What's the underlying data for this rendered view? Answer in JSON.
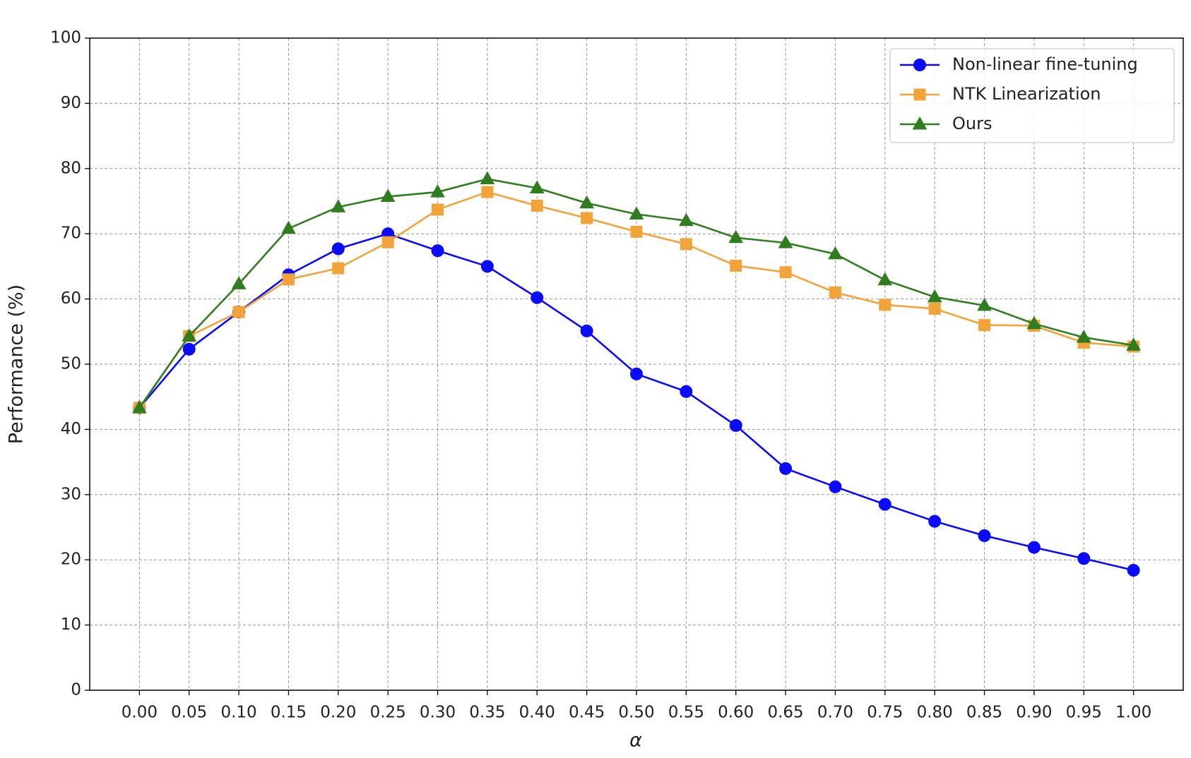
{
  "chart_data": {
    "type": "line",
    "xlabel": "α",
    "ylabel": "Performance (%)",
    "x": [
      0,
      0.05,
      0.1,
      0.15,
      0.2,
      0.25,
      0.3,
      0.35,
      0.4,
      0.45,
      0.5,
      0.55,
      0.6,
      0.65,
      0.7,
      0.75,
      0.8,
      0.85,
      0.9,
      0.95,
      1.0
    ],
    "xlim": [
      -0.05,
      1.05
    ],
    "xticks": [
      {
        "value": 0,
        "label": "0.00"
      },
      {
        "value": 0.05,
        "label": "0.05"
      },
      {
        "value": 0.1,
        "label": "0.10"
      },
      {
        "value": 0.15,
        "label": "0.15"
      },
      {
        "value": 0.2,
        "label": "0.20"
      },
      {
        "value": 0.25,
        "label": "0.25"
      },
      {
        "value": 0.3,
        "label": "0.30"
      },
      {
        "value": 0.35,
        "label": "0.35"
      },
      {
        "value": 0.4,
        "label": "0.40"
      },
      {
        "value": 0.45,
        "label": "0.45"
      },
      {
        "value": 0.5,
        "label": "0.50"
      },
      {
        "value": 0.55,
        "label": "0.55"
      },
      {
        "value": 0.6,
        "label": "0.60"
      },
      {
        "value": 0.65,
        "label": "0.65"
      },
      {
        "value": 0.7,
        "label": "0.70"
      },
      {
        "value": 0.75,
        "label": "0.75"
      },
      {
        "value": 0.8,
        "label": "0.80"
      },
      {
        "value": 0.85,
        "label": "0.85"
      },
      {
        "value": 0.9,
        "label": "0.90"
      },
      {
        "value": 0.95,
        "label": "0.95"
      },
      {
        "value": 1.0,
        "label": "1.00"
      }
    ],
    "ylim": [
      0,
      100
    ],
    "yticks": [
      0,
      10,
      20,
      30,
      40,
      50,
      60,
      70,
      80,
      90,
      100
    ],
    "grid": true,
    "legend": "upper right",
    "series": [
      {
        "name": "Non-linear fine-tuning",
        "color": "#0a0aff",
        "marker": "circle",
        "values": [
          43.3,
          52.3,
          58.0,
          63.7,
          67.7,
          70.0,
          67.4,
          65.0,
          60.2,
          55.1,
          48.5,
          45.8,
          40.6,
          34.0,
          31.2,
          28.5,
          25.9,
          23.7,
          21.9,
          20.2,
          18.4
        ]
      },
      {
        "name": "NTK Linearization",
        "color": "#f2a43a",
        "marker": "square",
        "values": [
          43.3,
          54.3,
          58.0,
          63.0,
          64.7,
          68.7,
          73.7,
          76.4,
          74.3,
          72.4,
          70.3,
          68.4,
          65.1,
          64.1,
          61.0,
          59.1,
          58.5,
          56.0,
          55.9,
          53.3,
          52.7
        ]
      },
      {
        "name": "Ours",
        "color": "#2f7d1f",
        "marker": "triangle",
        "values": [
          43.3,
          54.3,
          62.3,
          70.8,
          74.1,
          75.7,
          76.4,
          78.4,
          77.0,
          74.7,
          73.0,
          72.0,
          69.4,
          68.6,
          66.9,
          62.9,
          60.3,
          59.0,
          56.2,
          54.1,
          52.9
        ]
      }
    ]
  }
}
